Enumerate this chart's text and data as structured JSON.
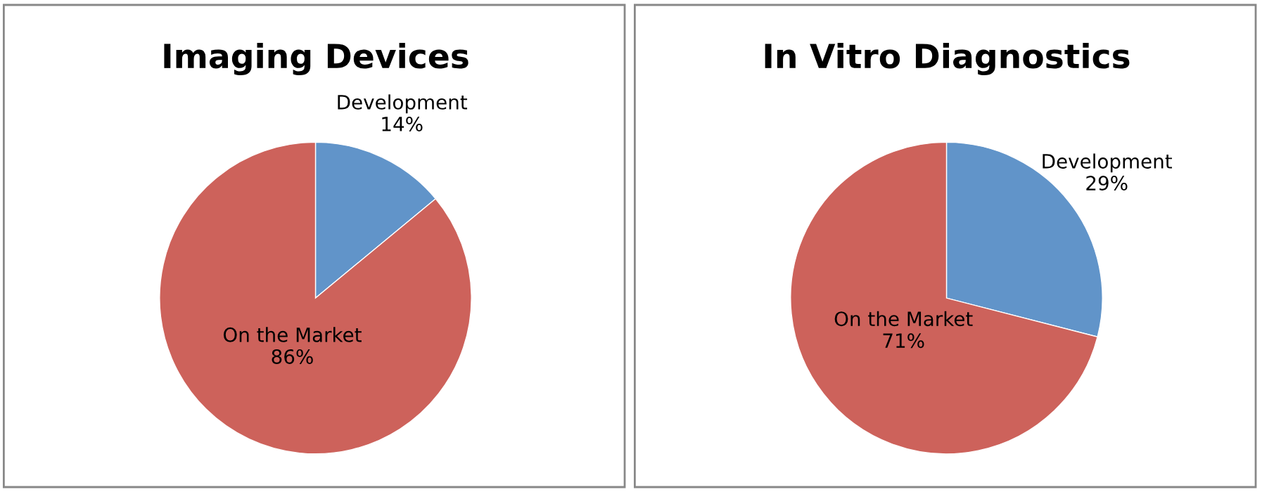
{
  "chart_data": [
    {
      "type": "pie",
      "title": "Imaging Devices",
      "categories": [
        "Development",
        "On the Market"
      ],
      "values": [
        14,
        86
      ],
      "colors": [
        "#6194c9",
        "#cd625b"
      ],
      "value_labels": [
        "14%",
        "86%"
      ]
    },
    {
      "type": "pie",
      "title": "In Vitro Diagnostics",
      "categories": [
        "Development",
        "On the Market"
      ],
      "values": [
        29,
        71
      ],
      "colors": [
        "#6194c9",
        "#cd625b"
      ],
      "value_labels": [
        "29%",
        "71%"
      ]
    }
  ]
}
